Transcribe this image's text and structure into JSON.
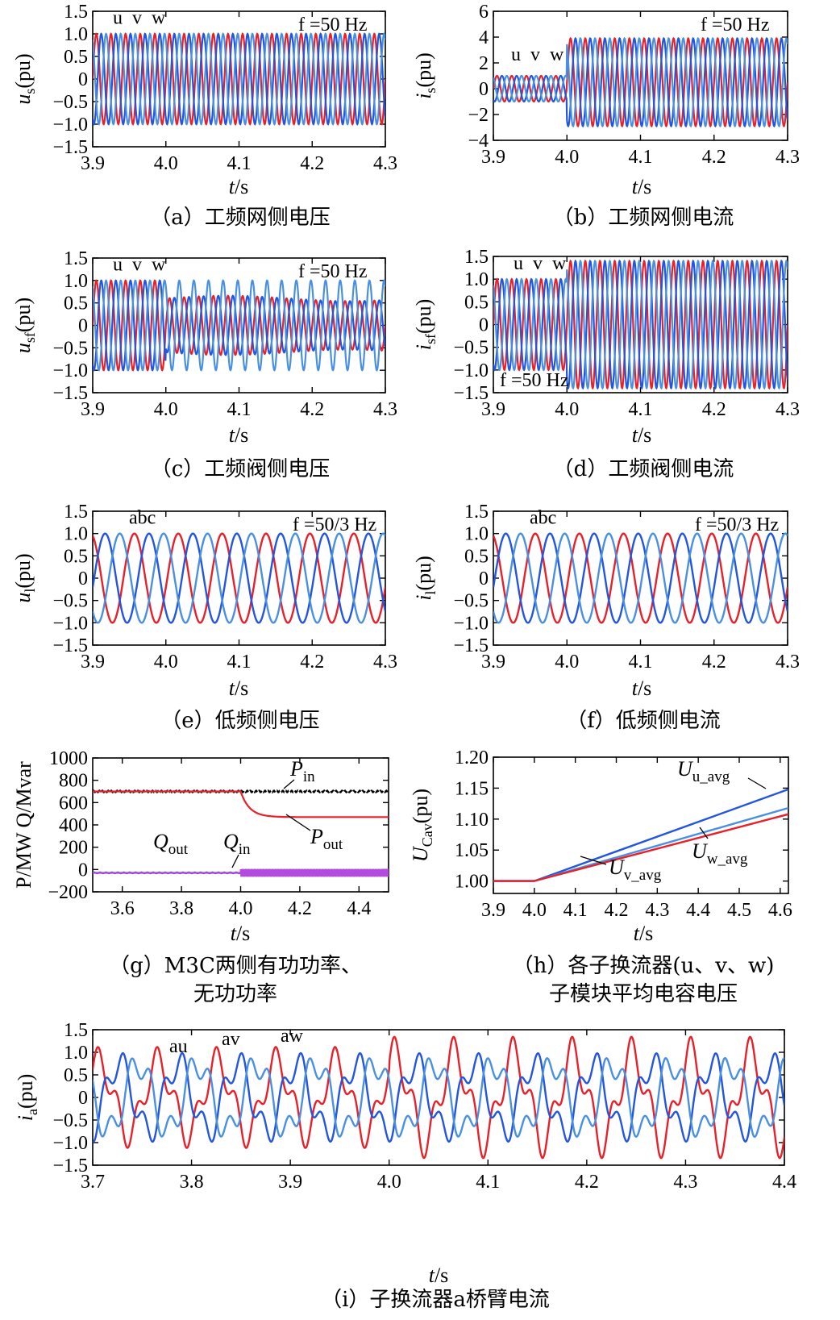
{
  "colors": {
    "red": "#e8202a",
    "dark_blue": "#2255e0",
    "light_blue": "#4a90e2",
    "black": "#000000",
    "purple": "#b44be0"
  },
  "chart_data": [
    {
      "id": "a",
      "type": "line",
      "caption": "（a）工频网侧电压",
      "xlabel": "t/s",
      "ylabel": "us(pu)",
      "xlim": [
        3.9,
        4.3
      ],
      "ylim": [
        -1.5,
        1.5
      ],
      "xticks": [
        "3.9",
        "4.0",
        "4.1",
        "4.2",
        "4.3"
      ],
      "yticks": [
        "1.5",
        "1.0",
        "0.5",
        "0",
        "−0.5",
        "−1.0",
        "−1.5"
      ],
      "freq_label": "f =50 Hz",
      "series": [
        {
          "name": "u",
          "freq_hz": 50,
          "amp_before": 1.0,
          "amp_after": 1.0,
          "t_step": 4.0
        },
        {
          "name": "v",
          "freq_hz": 50,
          "amp_before": 1.0,
          "amp_after": 1.0,
          "t_step": 4.0
        },
        {
          "name": "w",
          "freq_hz": 50,
          "amp_before": 1.0,
          "amp_after": 1.0,
          "t_step": 4.0
        }
      ]
    },
    {
      "id": "b",
      "type": "line",
      "caption": "（b）工频网侧电流",
      "xlabel": "t/s",
      "ylabel": "is(pu)",
      "xlim": [
        3.9,
        4.3
      ],
      "ylim": [
        -4,
        6
      ],
      "xticks": [
        "3.9",
        "4.0",
        "4.1",
        "4.2",
        "4.3"
      ],
      "yticks": [
        "6",
        "4",
        "2",
        "0",
        "−2",
        "−4"
      ],
      "freq_label": "f =50 Hz",
      "series": [
        {
          "name": "u",
          "freq_hz": 50,
          "amp_before": 1.0,
          "amp_after": 3.4,
          "offset_after": 0.5,
          "t_step": 4.0
        },
        {
          "name": "v",
          "freq_hz": 50,
          "amp_before": 1.0,
          "amp_after": 3.4,
          "offset_after": 0.5,
          "t_step": 4.0
        },
        {
          "name": "w",
          "freq_hz": 50,
          "amp_before": 1.0,
          "amp_after": 3.4,
          "offset_after": 0.5,
          "t_step": 4.0
        }
      ]
    },
    {
      "id": "c",
      "type": "line",
      "caption": "（c）工频阀侧电压",
      "xlabel": "t/s",
      "ylabel": "usf(pu)",
      "xlim": [
        3.9,
        4.3
      ],
      "ylim": [
        -1.5,
        1.5
      ],
      "xticks": [
        "3.9",
        "4.0",
        "4.1",
        "4.2",
        "4.3"
      ],
      "yticks": [
        "1.5",
        "1.0",
        "0.5",
        "0",
        "−0.5",
        "−1.0",
        "−1.5"
      ],
      "freq_label": "f =50 Hz",
      "series": [
        {
          "name": "u",
          "freq_hz": 50,
          "amp_before": 1.0,
          "amp_after": 0.6,
          "t_step": 4.0
        },
        {
          "name": "v",
          "freq_hz": 50,
          "amp_before": 1.0,
          "amp_after": 0.6,
          "t_step": 4.0
        },
        {
          "name": "w",
          "freq_hz": 50,
          "amp_before": 1.0,
          "amp_after": 1.0,
          "t_step": 4.0
        }
      ]
    },
    {
      "id": "d",
      "type": "line",
      "caption": "（d）工频阀侧电流",
      "xlabel": "t/s",
      "ylabel": "isf(pu)",
      "xlim": [
        3.9,
        4.3
      ],
      "ylim": [
        -1.5,
        1.5
      ],
      "xticks": [
        "3.9",
        "4.0",
        "4.1",
        "4.2",
        "4.3"
      ],
      "yticks": [
        "1.5",
        "1.0",
        "0.5",
        "0",
        "−0.5",
        "−1.0",
        "−1.5"
      ],
      "freq_label": "f =50 Hz",
      "series": [
        {
          "name": "u",
          "freq_hz": 50,
          "amp_before": 1.0,
          "amp_after": 1.4,
          "t_step": 4.0
        },
        {
          "name": "v",
          "freq_hz": 50,
          "amp_before": 1.0,
          "amp_after": 1.4,
          "t_step": 4.0
        },
        {
          "name": "w",
          "freq_hz": 50,
          "amp_before": 1.0,
          "amp_after": 1.4,
          "t_step": 4.0
        }
      ]
    },
    {
      "id": "e",
      "type": "line",
      "caption": "（e）低频侧电压",
      "xlabel": "t/s",
      "ylabel": "ul(pu)",
      "xlim": [
        3.9,
        4.3
      ],
      "ylim": [
        -1.5,
        1.5
      ],
      "xticks": [
        "3.9",
        "4.0",
        "4.1",
        "4.2",
        "4.3"
      ],
      "yticks": [
        "1.5",
        "1.0",
        "0.5",
        "0",
        "−0.5",
        "−1.0",
        "−1.5"
      ],
      "freq_label": "f =50/3 Hz",
      "phase_label": "abc",
      "series": [
        {
          "name": "a",
          "freq_hz": 16.67,
          "amp": 1.0
        },
        {
          "name": "b",
          "freq_hz": 16.67,
          "amp": 1.0
        },
        {
          "name": "c",
          "freq_hz": 16.67,
          "amp": 1.0
        }
      ]
    },
    {
      "id": "f",
      "type": "line",
      "caption": "（f）低频侧电流",
      "xlabel": "t/s",
      "ylabel": "il(pu)",
      "xlim": [
        3.9,
        4.3
      ],
      "ylim": [
        -1.5,
        1.5
      ],
      "xticks": [
        "3.9",
        "4.0",
        "4.1",
        "4.2",
        "4.3"
      ],
      "yticks": [
        "1.5",
        "1.0",
        "0.5",
        "0",
        "−0.5",
        "−1.0",
        "−1.5"
      ],
      "freq_label": "f =50/3 Hz",
      "phase_label": "abc",
      "series": [
        {
          "name": "a",
          "freq_hz": 16.67,
          "amp": 1.0
        },
        {
          "name": "b",
          "freq_hz": 16.67,
          "amp": 1.0
        },
        {
          "name": "c",
          "freq_hz": 16.67,
          "amp": 1.0
        }
      ]
    },
    {
      "id": "g",
      "type": "line",
      "caption_line1": "（g）M3C两侧有功功率、",
      "caption_line2": "无功功率",
      "xlabel": "t/s",
      "ylabel": "P/MW Q/Mvar",
      "xlim": [
        3.5,
        4.5
      ],
      "ylim": [
        -200,
        1000
      ],
      "xticks": [
        "3.6",
        "3.8",
        "4.0",
        "4.2",
        "4.4"
      ],
      "yticks": [
        "1000",
        "800",
        "600",
        "400",
        "200",
        "0",
        "−200"
      ],
      "series": [
        {
          "name": "Pin",
          "label_main": "P",
          "label_sub": "in",
          "level_before": 700,
          "level_after": 700
        },
        {
          "name": "Pout",
          "label_main": "P",
          "label_sub": "out",
          "level_before": 700,
          "level_after": 470,
          "t_step": 4.0
        },
        {
          "name": "Qout",
          "label_main": "Q",
          "label_sub": "out",
          "level_before": -30,
          "level_after": -30
        },
        {
          "name": "Qin",
          "label_main": "Q",
          "label_sub": "in",
          "level_before": -30,
          "level_after": -30,
          "ripple_after": 40
        }
      ]
    },
    {
      "id": "h",
      "type": "line",
      "caption_line1": "（h）各子换流器(u、v、w)",
      "caption_line2": "子模块平均电容电压",
      "xlabel": "t/s",
      "ylabel": "UCav(pu)",
      "xlim": [
        3.9,
        4.62
      ],
      "ylim": [
        0.98,
        1.2
      ],
      "xticks": [
        "3.9",
        "4.0",
        "4.1",
        "4.2",
        "4.3",
        "4.4",
        "4.5",
        "4.6"
      ],
      "yticks": [
        "1.20",
        "1.15",
        "1.10",
        "1.05",
        "1.00"
      ],
      "series": [
        {
          "name": "U_u_avg",
          "label_main": "U",
          "label_sub": "u_avg",
          "x": [
            3.9,
            4.0,
            4.62
          ],
          "y": [
            1.0,
            1.0,
            1.148
          ]
        },
        {
          "name": "U_v_avg",
          "label_main": "U",
          "label_sub": "v_avg",
          "x": [
            3.9,
            4.0,
            4.62
          ],
          "y": [
            1.0,
            1.0,
            1.118
          ]
        },
        {
          "name": "U_w_avg",
          "label_main": "U",
          "label_sub": "w_avg",
          "x": [
            3.9,
            4.0,
            4.62
          ],
          "y": [
            1.0,
            1.0,
            1.108
          ]
        }
      ]
    },
    {
      "id": "i",
      "type": "line",
      "caption": "（i）子换流器a桥臂电流",
      "xlabel": "t/s",
      "ylabel": "ia(pu)",
      "xlim": [
        3.7,
        4.4
      ],
      "ylim": [
        -1.5,
        1.5
      ],
      "xticks": [
        "3.7",
        "3.8",
        "3.9",
        "4.0",
        "4.1",
        "4.2",
        "4.3",
        "4.4"
      ],
      "yticks": [
        "1.5",
        "1.0",
        "0.5",
        "0",
        "−0.5",
        "−1.0",
        "−1.5"
      ],
      "series": [
        {
          "name": "au",
          "freq_hz": 16.67,
          "amp": 1.05
        },
        {
          "name": "av",
          "freq_hz": 16.67,
          "amp": 1.0
        },
        {
          "name": "aw",
          "freq_hz": 16.67,
          "amp": 1.0
        }
      ]
    }
  ]
}
